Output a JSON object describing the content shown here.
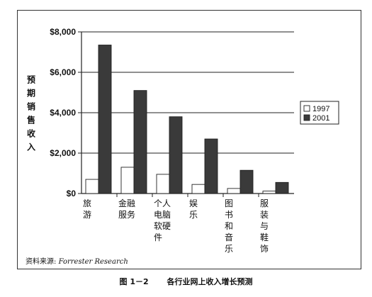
{
  "chart_data": {
    "type": "bar",
    "ylabel": "预期销售收入",
    "ylim": [
      0,
      8000
    ],
    "yticks": [
      0,
      2000,
      4000,
      6000,
      8000
    ],
    "ytick_labels": [
      "$0",
      "$2,000",
      "$4,000",
      "$6,000",
      "$8,000"
    ],
    "grid": true,
    "legend_position": "right",
    "categories": [
      "旅游",
      "金融服务",
      "个人电脑软硬件",
      "娱乐",
      "图书和音乐",
      "服装与鞋饰"
    ],
    "category_label_lines": [
      [
        "旅",
        "游"
      ],
      [
        "金融",
        "服务"
      ],
      [
        "个人",
        "电脑",
        "软硬",
        "件"
      ],
      [
        "娱",
        "乐"
      ],
      [
        "图",
        "书",
        "和",
        "音",
        "乐"
      ],
      [
        "服",
        "装",
        "与",
        "鞋",
        "饰"
      ]
    ],
    "series": [
      {
        "name": "1997",
        "color": "#ffffff",
        "values": [
          700,
          1300,
          950,
          450,
          250,
          120
        ]
      },
      {
        "name": "2001",
        "color": "#3a3a3a",
        "values": [
          7350,
          5100,
          3800,
          2700,
          1150,
          550
        ]
      }
    ]
  },
  "source": {
    "label": "资料来源:",
    "name": "Forrester Research"
  },
  "caption": {
    "number": "图 1－2",
    "title": "各行业网上收入增长预测"
  }
}
